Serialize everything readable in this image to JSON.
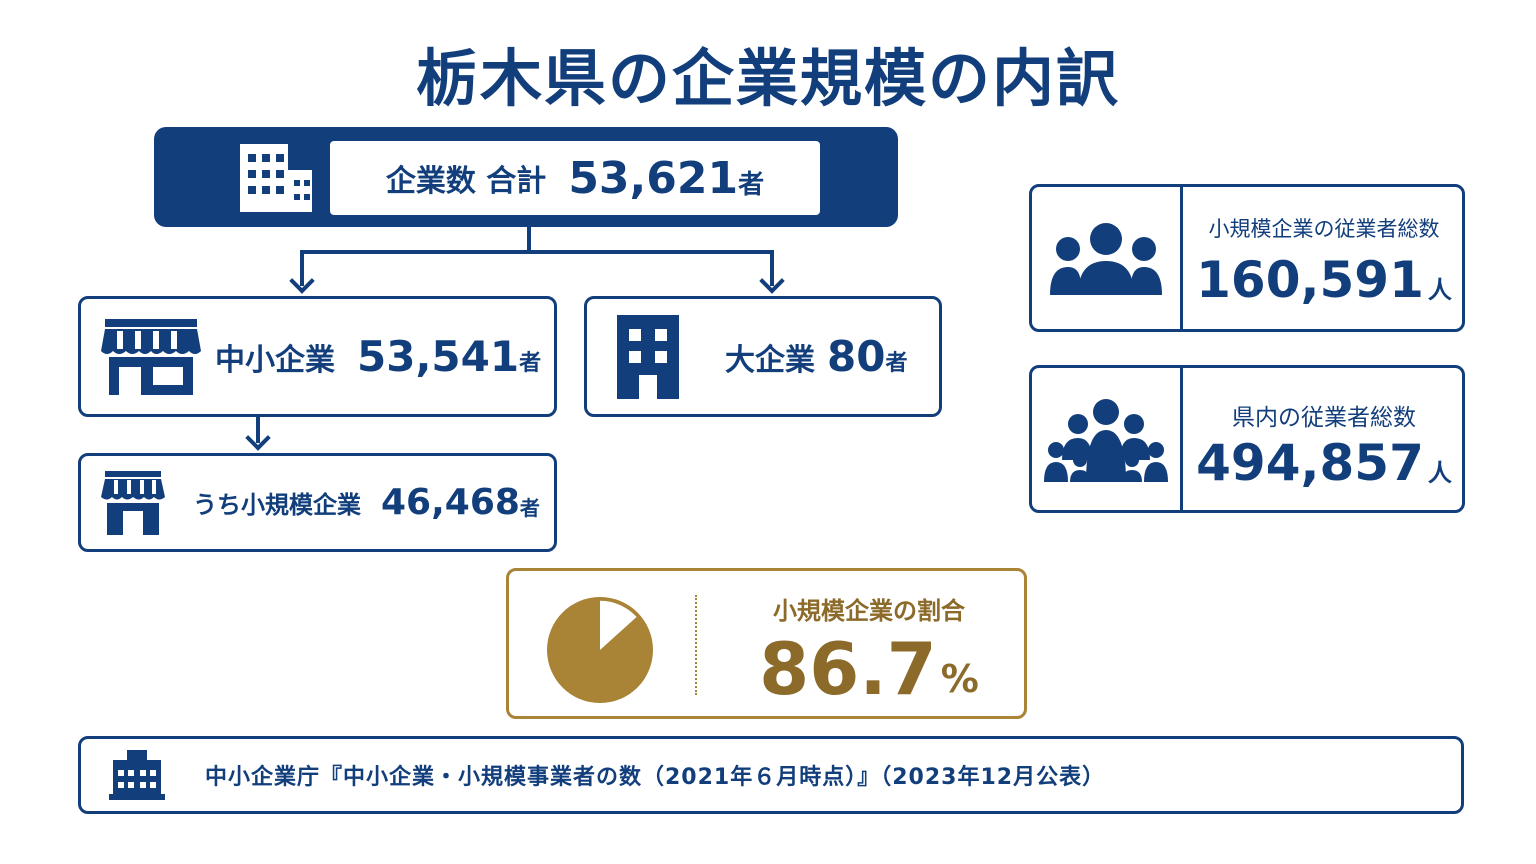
{
  "title": "栃木県の企業規模の内訳",
  "total": {
    "label": "企業数 合計",
    "value": "53,621",
    "unit": "者",
    "icon": "office-building-icon"
  },
  "sme": {
    "label": "中小企業",
    "value": "53,541",
    "unit": "者",
    "icon": "storefront-icon"
  },
  "large": {
    "label": "大企業",
    "value": "80",
    "unit": "者",
    "icon": "tall-building-icon"
  },
  "small": {
    "label": "うち小規模企業",
    "value": "46,468",
    "unit": "者",
    "icon": "small-shop-icon"
  },
  "stats": [
    {
      "label": "小規模企業の従業者総数",
      "value": "160,591",
      "unit": "人",
      "icon": "people-group-icon"
    },
    {
      "label": "県内の従業者総数",
      "value": "494,857",
      "unit": "人",
      "icon": "crowd-icon"
    }
  ],
  "ratio": {
    "label": "小規模企業の割合",
    "value": "86.7",
    "unit": "%",
    "fraction": 0.867,
    "icon": "pie-chart-icon"
  },
  "source": {
    "text": "中小企業庁『中小企業・小規模事業者の数（2021年６月時点）』（2023年12月公表）",
    "icon": "government-building-icon"
  },
  "colors": {
    "navy": "#123e7c",
    "gold": "#a98336",
    "gold_text": "#8c6a2a",
    "background": "#ffffff"
  }
}
